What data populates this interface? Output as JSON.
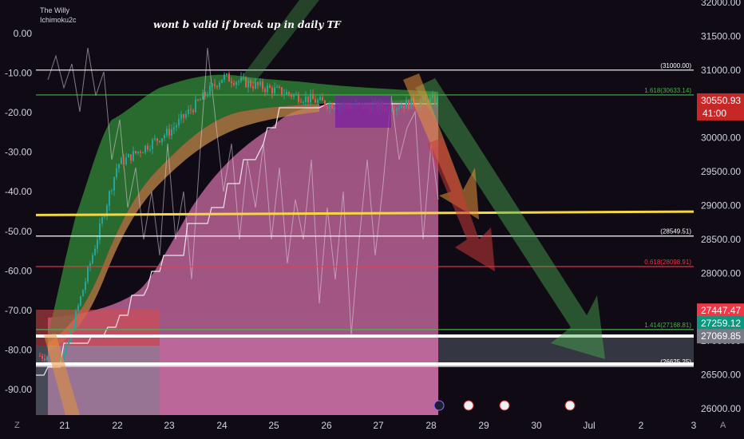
{
  "indicators": [
    "The Willy",
    "Ichimoku2c"
  ],
  "annotation": "wont b valid if break up in daily TF",
  "left_axis": {
    "ticks": [
      "0.00",
      "-10.00",
      "-20.00",
      "-30.00",
      "-40.00",
      "-50.00",
      "-60.00",
      "-70.00",
      "-80.00",
      "-90.00"
    ]
  },
  "right_axis": {
    "ticks": [
      "32000.00",
      "31500.00",
      "31000.00",
      "30500.00",
      "30000.00",
      "29500.00",
      "29000.00",
      "28500.00",
      "28000.00",
      "27500.00",
      "27000.00",
      "26500.00",
      "26000.00"
    ]
  },
  "x_axis": {
    "ticks": [
      "21",
      "22",
      "23",
      "24",
      "25",
      "26",
      "27",
      "28",
      "29",
      "30",
      "Jul",
      "2",
      "3"
    ]
  },
  "corner_left": "Z",
  "corner_right": "A",
  "levels": [
    {
      "label": "(31000.00)",
      "price": 31000.0,
      "color": "#ffffff"
    },
    {
      "label": "1.618(30633.14)",
      "price": 30633.14,
      "color": "#4caf50"
    },
    {
      "label": "(28549.51)",
      "price": 28549.51,
      "color": "#ffffff"
    },
    {
      "label": "0.618(28098.91)",
      "price": 28098.91,
      "color": "#f23645"
    },
    {
      "label": "1.414(27168.81)",
      "price": 27168.81,
      "color": "#4caf50"
    },
    {
      "label": "(26625.25)",
      "price": 26625.25,
      "color": "#ffffff"
    }
  ],
  "price_badges": [
    {
      "label": "30550.93",
      "sub": "41:00",
      "price": 30550.93,
      "color": "#c62828"
    },
    {
      "label": "27447.47",
      "price": 27447.47,
      "color": "#f23645"
    },
    {
      "label": "27259.12",
      "price": 27259.12,
      "color": "#089981"
    },
    {
      "label": "27069.85",
      "price": 27069.85,
      "color": "#787b86"
    }
  ],
  "chart_data": {
    "type": "line",
    "x": [
      "21",
      "22",
      "23",
      "24",
      "25",
      "26",
      "27",
      "28"
    ],
    "series": [
      {
        "values": [
          26780,
          29600,
          30100,
          30900,
          30700,
          30500,
          30450,
          30550
        ]
      }
    ],
    "right_ylim": [
      26000,
      32000
    ],
    "left_ylim": [
      -90,
      0
    ],
    "trendline": {
      "start_price": 28860,
      "end_price": 28910
    },
    "colors": {
      "background": "#0f0a14",
      "cloud_bull": "#4caf50",
      "cloud_bear": "#e57373",
      "pink_zone": "#b05a8c",
      "trendline": "#f5d742"
    }
  }
}
